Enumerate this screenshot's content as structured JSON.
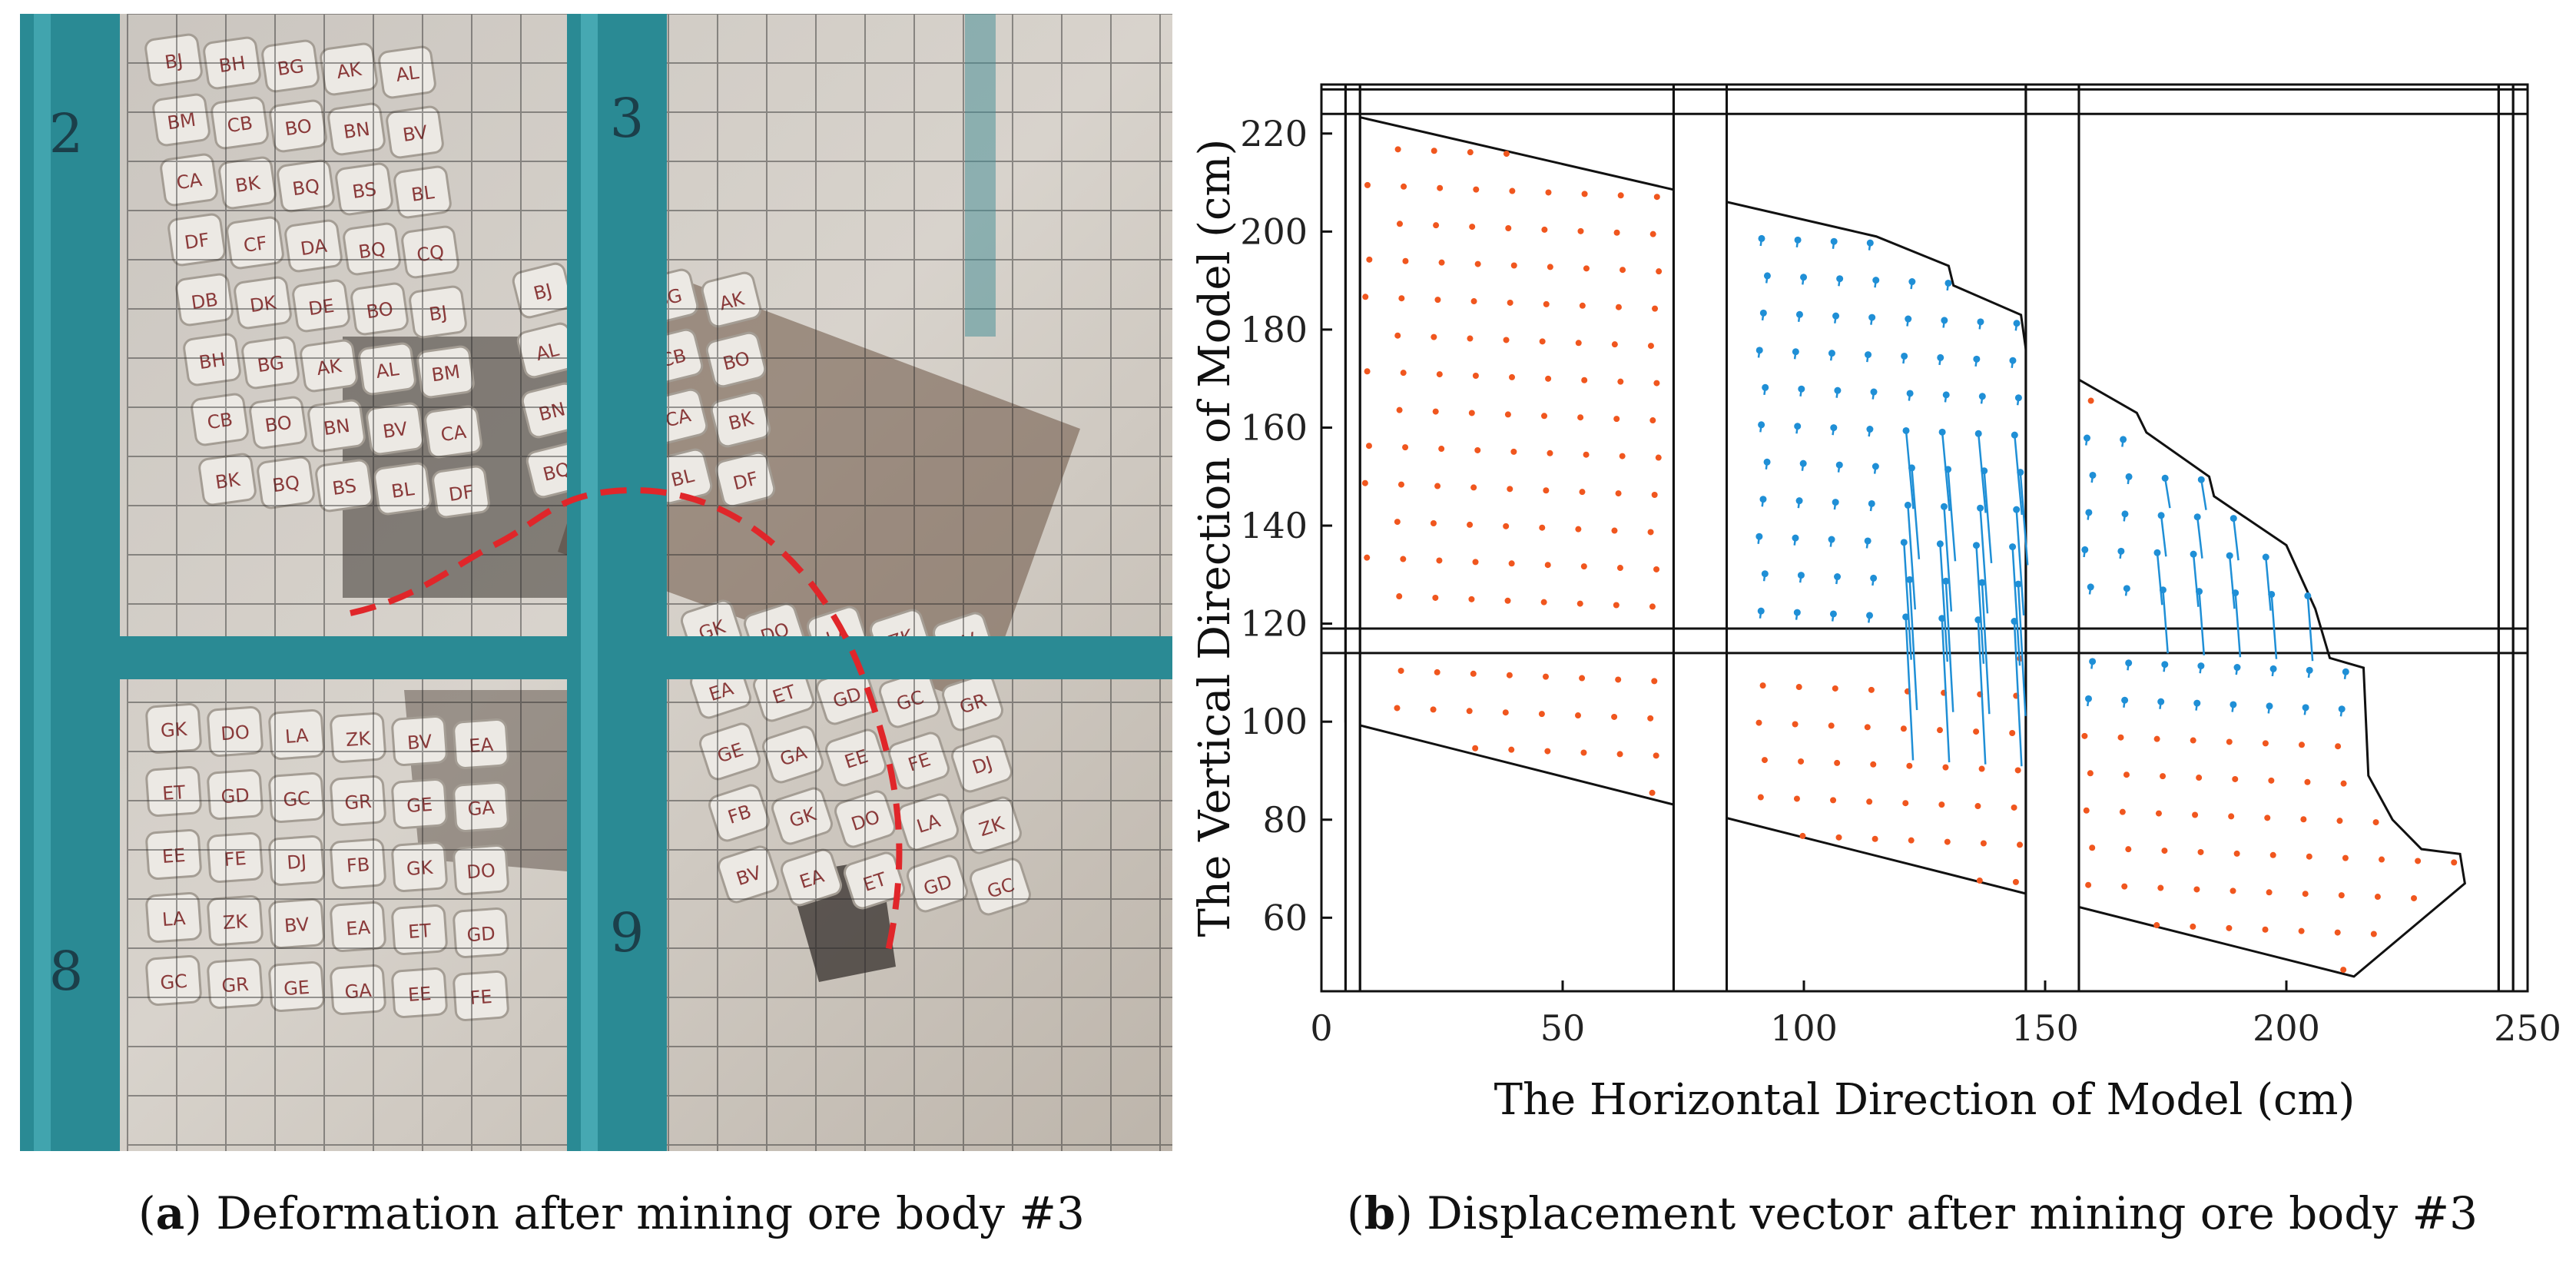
{
  "panel_a": {
    "caption_letter": "a",
    "caption_text": "Deformation after mining ore body #3",
    "frame_labels": [
      "2",
      "3",
      "8",
      "9"
    ],
    "block_labels": [
      "BJ",
      "BH",
      "BG",
      "AK",
      "AL",
      "BM",
      "CB",
      "BO",
      "BN",
      "BV",
      "CA",
      "BK",
      "BQ",
      "BS",
      "BL",
      "DF",
      "CF",
      "DA",
      "BQ",
      "CQ",
      "DB",
      "DK",
      "DE",
      "BO",
      "GK",
      "DO",
      "LA",
      "ZK",
      "BV",
      "EA",
      "ET",
      "GD",
      "GC",
      "GR",
      "GE",
      "GA",
      "EE",
      "FE",
      "DJ",
      "FB"
    ],
    "colors": {
      "frame": "#2a8a94",
      "dashed_curve": "#e0262a",
      "background": "#cfcac4"
    }
  },
  "panel_b": {
    "caption_letter": "b",
    "caption_text": "Displacement vector after mining ore body #3",
    "colors": {
      "points": "#f0561e",
      "vectors": "#1f8fd6",
      "lines": "#111111"
    }
  },
  "chart_data": {
    "type": "scatter",
    "title": "",
    "xlabel": "The Horizontal Direction of Model (cm)",
    "ylabel": "The Vertical Direction of Model (cm)",
    "xlim": [
      0,
      250
    ],
    "ylim": [
      45,
      230
    ],
    "xticks": [
      0,
      50,
      100,
      150,
      200,
      250
    ],
    "yticks": [
      60,
      80,
      100,
      120,
      140,
      160,
      180,
      200,
      220
    ],
    "boundary": {
      "top": [
        [
          5,
          224
        ],
        [
          115,
          199
        ],
        [
          125,
          195
        ],
        [
          130,
          193
        ],
        [
          131,
          189
        ],
        [
          145,
          183
        ],
        [
          146,
          176
        ],
        [
          169,
          163
        ],
        [
          171,
          159
        ],
        [
          184,
          150
        ],
        [
          185,
          146
        ],
        [
          200,
          136
        ],
        [
          206,
          123
        ],
        [
          209,
          113
        ],
        [
          216,
          111
        ],
        [
          217,
          89
        ],
        [
          222,
          80
        ],
        [
          228,
          74
        ],
        [
          236,
          73
        ],
        [
          237,
          67
        ],
        [
          214,
          48
        ]
      ],
      "bottom": [
        [
          5,
          100
        ],
        [
          214,
          48
        ]
      ]
    },
    "frame_columns": [
      [
        5,
        8
      ],
      [
        73,
        84
      ],
      [
        146,
        157
      ],
      [
        244,
        247
      ]
    ],
    "frame_beams": [
      [
        114,
        119
      ],
      [
        224,
        229
      ]
    ],
    "vectors_region": {
      "x": [
        90,
        225
      ],
      "y": [
        95,
        205
      ]
    }
  }
}
